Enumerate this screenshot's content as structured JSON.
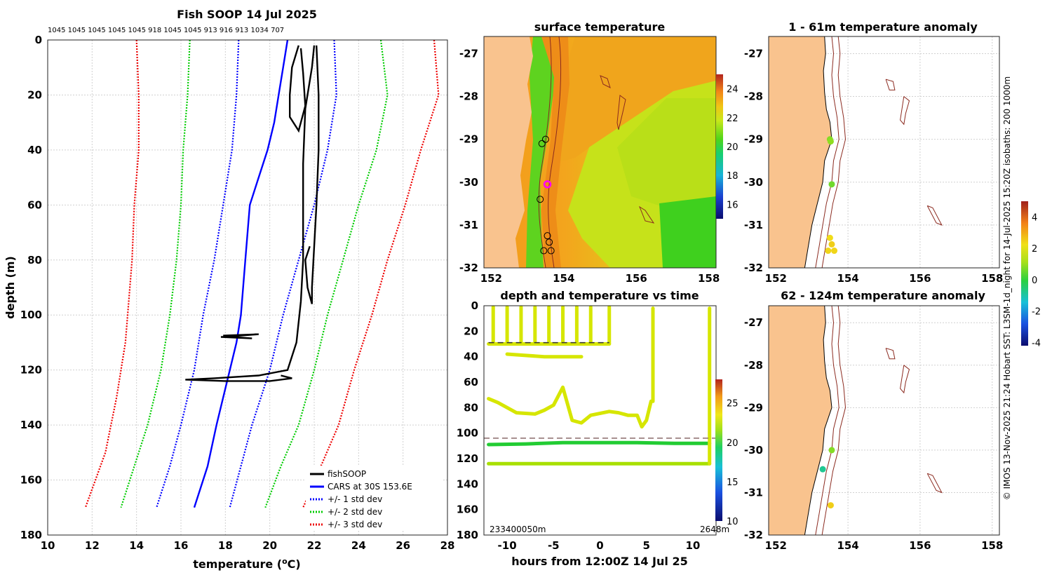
{
  "chart_data": [
    {
      "type": "line",
      "title": "Fish SOOP 14 Jul 2025",
      "header_counts": "1045 1045 1045 1045 1045 918 1045 1045 913 916 913 1034 707",
      "xlabel": "temperature (",
      "xlabel_sup": "o",
      "xlabel_end": "C)",
      "ylabel": "depth (m)",
      "xlim": [
        10,
        28
      ],
      "ylim": [
        180,
        0
      ],
      "xticks": [
        10,
        12,
        14,
        16,
        18,
        20,
        22,
        24,
        26,
        28
      ],
      "yticks": [
        0,
        20,
        40,
        60,
        80,
        100,
        120,
        140,
        160,
        180
      ],
      "grid": true,
      "legend_position": "bottom-right",
      "legend": [
        {
          "label": "fishSOOP",
          "color": "#000000",
          "style": "solid"
        },
        {
          "label": "CARS at 30S 153.6E",
          "color": "#0000ff",
          "style": "solid"
        },
        {
          "label": "+/- 1 std dev",
          "color": "#0000ff",
          "style": "dotted"
        },
        {
          "label": "+/- 2 std dev",
          "color": "#00cc00",
          "style": "dotted"
        },
        {
          "label": "+/- 3 std dev",
          "color": "#ee0000",
          "style": "dotted"
        }
      ],
      "series": [
        {
          "name": "CARS mean",
          "color": "#0000ff",
          "style": "solid",
          "points": [
            [
              20.8,
              0
            ],
            [
              20.6,
              10
            ],
            [
              20.4,
              20
            ],
            [
              20.2,
              30
            ],
            [
              19.9,
              40
            ],
            [
              19.5,
              50
            ],
            [
              19.1,
              60
            ],
            [
              18.9,
              80
            ],
            [
              18.7,
              100
            ],
            [
              18.5,
              110
            ],
            [
              18.2,
              120
            ],
            [
              17.9,
              130
            ],
            [
              17.6,
              140
            ],
            [
              17.2,
              155
            ],
            [
              16.6,
              170
            ]
          ]
        },
        {
          "name": "-1 std",
          "color": "#0000ff",
          "style": "dotted",
          "points": [
            [
              18.6,
              0
            ],
            [
              18.5,
              20
            ],
            [
              18.3,
              40
            ],
            [
              17.9,
              60
            ],
            [
              17.5,
              80
            ],
            [
              17.0,
              100
            ],
            [
              16.6,
              120
            ],
            [
              16.0,
              140
            ],
            [
              15.5,
              155
            ],
            [
              14.9,
              170
            ]
          ]
        },
        {
          "name": "+1 std",
          "color": "#0000ff",
          "style": "dotted",
          "points": [
            [
              22.9,
              0
            ],
            [
              23.0,
              20
            ],
            [
              22.6,
              40
            ],
            [
              22.0,
              60
            ],
            [
              21.3,
              80
            ],
            [
              20.6,
              100
            ],
            [
              20.0,
              120
            ],
            [
              19.6,
              130
            ],
            [
              19.2,
              140
            ],
            [
              18.7,
              155
            ],
            [
              18.2,
              170
            ]
          ]
        },
        {
          "name": "-2 std",
          "color": "#00cc00",
          "style": "dotted",
          "points": [
            [
              16.4,
              0
            ],
            [
              16.3,
              20
            ],
            [
              16.1,
              40
            ],
            [
              16.0,
              60
            ],
            [
              15.8,
              80
            ],
            [
              15.5,
              100
            ],
            [
              15.1,
              120
            ],
            [
              14.5,
              140
            ],
            [
              13.9,
              155
            ],
            [
              13.3,
              170
            ]
          ]
        },
        {
          "name": "+2 std",
          "color": "#00cc00",
          "style": "dotted",
          "points": [
            [
              25.0,
              0
            ],
            [
              25.3,
              20
            ],
            [
              24.8,
              40
            ],
            [
              24.0,
              60
            ],
            [
              23.3,
              80
            ],
            [
              22.6,
              100
            ],
            [
              22.0,
              120
            ],
            [
              21.3,
              140
            ],
            [
              20.5,
              155
            ],
            [
              19.8,
              170
            ]
          ]
        },
        {
          "name": "-3 std",
          "color": "#ee0000",
          "style": "dotted",
          "points": [
            [
              14.0,
              0
            ],
            [
              14.1,
              20
            ],
            [
              14.1,
              40
            ],
            [
              13.9,
              60
            ],
            [
              13.8,
              80
            ],
            [
              13.6,
              100
            ],
            [
              13.5,
              110
            ],
            [
              13.1,
              130
            ],
            [
              12.6,
              150
            ],
            [
              11.7,
              170
            ]
          ]
        },
        {
          "name": "+3 std",
          "color": "#ee0000",
          "style": "dotted",
          "points": [
            [
              27.4,
              0
            ],
            [
              27.6,
              20
            ],
            [
              26.8,
              40
            ],
            [
              26.1,
              60
            ],
            [
              25.3,
              80
            ],
            [
              24.6,
              100
            ],
            [
              23.8,
              120
            ],
            [
              23.1,
              140
            ],
            [
              22.3,
              155
            ],
            [
              21.5,
              170
            ]
          ]
        },
        {
          "name": "fishSOOP cast A",
          "color": "#000000",
          "style": "solid",
          "points": [
            [
              21.3,
              2
            ],
            [
              21.0,
              10
            ],
            [
              20.9,
              20
            ],
            [
              20.9,
              28
            ],
            [
              21.3,
              33
            ],
            [
              21.6,
              24
            ],
            [
              21.5,
              12
            ],
            [
              21.4,
              3
            ]
          ]
        },
        {
          "name": "fishSOOP cast B",
          "color": "#000000",
          "style": "solid",
          "points": [
            [
              22.0,
              2
            ],
            [
              21.9,
              10
            ],
            [
              21.6,
              25
            ],
            [
              21.5,
              45
            ],
            [
              21.5,
              65
            ],
            [
              21.5,
              80
            ],
            [
              21.4,
              95
            ],
            [
              21.2,
              110
            ],
            [
              20.8,
              120
            ],
            [
              19.5,
              122
            ],
            [
              17.5,
              123
            ],
            [
              16.2,
              123.5
            ],
            [
              18.0,
              124
            ],
            [
              20.0,
              124
            ],
            [
              21.0,
              123
            ],
            [
              20.5,
              122
            ]
          ]
        },
        {
          "name": "fishSOOP cast C",
          "color": "#000000",
          "style": "solid",
          "points": [
            [
              22.1,
              2
            ],
            [
              22.2,
              20
            ],
            [
              22.2,
              40
            ],
            [
              22.1,
              60
            ],
            [
              22.0,
              75
            ],
            [
              21.9,
              90
            ],
            [
              21.9,
              96
            ],
            [
              21.7,
              90
            ],
            [
              21.6,
              80
            ],
            [
              21.8,
              75
            ]
          ]
        },
        {
          "name": "fishSOOP cast D",
          "color": "#000000",
          "style": "solid",
          "points": [
            [
              17.9,
              107.5
            ],
            [
              19.5,
              107
            ],
            [
              17.8,
              108
            ],
            [
              19.2,
              108.5
            ],
            [
              18.0,
              107.8
            ]
          ]
        }
      ]
    },
    {
      "type": "heatmap",
      "title": "surface temperature",
      "xticks": [
        152,
        154,
        156,
        158
      ],
      "yticks": [
        -27,
        -28,
        -29,
        -30,
        -31,
        -32
      ],
      "xlim": [
        151.8,
        158.2
      ],
      "ylim": [
        -32,
        -26.6
      ],
      "colorbar_ticks": [
        16,
        18,
        20,
        22,
        24
      ],
      "colorbar_range": [
        15,
        25
      ],
      "marker_points": [
        [
          153.4,
          -29.1
        ],
        [
          153.5,
          -29.0
        ],
        [
          153.35,
          -30.4
        ],
        [
          153.55,
          -31.25
        ],
        [
          153.6,
          -31.4
        ],
        [
          153.45,
          -31.6
        ],
        [
          153.65,
          -31.6
        ]
      ],
      "magenta_point": [
        153.55,
        -30.05
      ]
    },
    {
      "type": "scatter",
      "title": "depth and temperature vs time",
      "xlabel": "hours from 12:00Z 14 Jul 25",
      "xlim": [
        -12.5,
        12.5
      ],
      "ylim": [
        180,
        0
      ],
      "xticks": [
        -10,
        -5,
        0,
        5,
        10
      ],
      "yticks": [
        0,
        20,
        40,
        60,
        80,
        100,
        120,
        140,
        160,
        180
      ],
      "colorbar_ticks": [
        10,
        15,
        20,
        25
      ],
      "colorbar_range": [
        10,
        28
      ],
      "bottom_left_label": "233400050m",
      "bottom_right_label": "2648m",
      "dashed_depths": [
        29,
        104
      ],
      "series": [
        {
          "name": "30m bottom line",
          "color": "#d6e600",
          "points": [
            [
              -12,
              30
            ],
            [
              -10,
              30
            ],
            [
              -8,
              30
            ],
            [
              -5,
              30
            ],
            [
              -2,
              30
            ],
            [
              1,
              30
            ]
          ]
        },
        {
          "name": "40m bottom line",
          "color": "#d6e600",
          "points": [
            [
              -10,
              38
            ],
            [
              -8,
              39
            ],
            [
              -6,
              40
            ],
            [
              -4,
              40
            ],
            [
              -2,
              40
            ]
          ]
        },
        {
          "name": "80m band",
          "color": "#d6e600",
          "points": [
            [
              -12,
              73
            ],
            [
              -11,
              76
            ],
            [
              -9,
              84
            ],
            [
              -7,
              85
            ],
            [
              -6,
              82
            ],
            [
              -5,
              78
            ],
            [
              -4,
              64
            ],
            [
              -3,
              90
            ],
            [
              -2,
              92
            ],
            [
              -1,
              86
            ],
            [
              1,
              83
            ],
            [
              2,
              84
            ],
            [
              3,
              86
            ],
            [
              4,
              86
            ],
            [
              4.5,
              95
            ],
            [
              5,
              90
            ],
            [
              5.5,
              75
            ]
          ]
        },
        {
          "name": "108m band",
          "color": "#22cc33",
          "points": [
            [
              -12,
              109
            ],
            [
              -8,
              108.5
            ],
            [
              -4,
              107.5
            ],
            [
              0,
              107.5
            ],
            [
              4,
              107.5
            ],
            [
              8,
              108
            ],
            [
              11.8,
              108
            ]
          ]
        },
        {
          "name": "124m band",
          "color": "#a8e000",
          "points": [
            [
              -12,
              124
            ],
            [
              -6,
              124
            ],
            [
              0,
              124
            ],
            [
              6,
              124
            ],
            [
              11.8,
              124
            ]
          ]
        },
        {
          "name": "vertical right",
          "color": "#d6e600",
          "points": [
            [
              11.8,
              2
            ],
            [
              11.8,
              124
            ]
          ]
        },
        {
          "name": "vertical 5.7",
          "color": "#d6e600",
          "points": [
            [
              5.7,
              2
            ],
            [
              5.7,
              75
            ]
          ]
        }
      ]
    },
    {
      "type": "scatter",
      "title": "1 - 61m temperature anomaly",
      "xticks": [
        152,
        154,
        156,
        158
      ],
      "yticks": [
        -27,
        -28,
        -29,
        -30,
        -31,
        -32
      ],
      "xlim": [
        151.8,
        158.2
      ],
      "ylim": [
        -32,
        -26.6
      ],
      "points": [
        {
          "lon": 153.5,
          "lat": -29.0,
          "value": 0.8
        },
        {
          "lon": 153.52,
          "lat": -29.05,
          "value": 0.9
        },
        {
          "lon": 153.55,
          "lat": -30.05,
          "value": 0.6
        },
        {
          "lon": 153.5,
          "lat": -31.3,
          "value": 2.3
        },
        {
          "lon": 153.55,
          "lat": -31.45,
          "value": 2.5
        },
        {
          "lon": 153.45,
          "lat": -31.6,
          "value": 2.4
        },
        {
          "lon": 153.62,
          "lat": -31.6,
          "value": 2.4
        }
      ]
    },
    {
      "type": "scatter",
      "title": "62 - 124m temperature anomaly",
      "xticks": [
        152,
        154,
        156,
        158
      ],
      "yticks": [
        -27,
        -28,
        -29,
        -30,
        -31,
        -32
      ],
      "xlim": [
        151.8,
        158.2
      ],
      "ylim": [
        -32,
        -26.6
      ],
      "colorbar_ticks": [
        -4,
        -2,
        0,
        2,
        4
      ],
      "colorbar_range": [
        -4.2,
        5
      ],
      "points": [
        {
          "lon": 153.55,
          "lat": -30.0,
          "value": 0.8
        },
        {
          "lon": 153.3,
          "lat": -30.45,
          "value": -0.8
        },
        {
          "lon": 153.52,
          "lat": -31.3,
          "value": 2.5
        }
      ]
    }
  ],
  "side_note": "© IMOS 13-Nov-2025 21:24 Hobart SST: L3SM-1d_night for 14-Jul-2025 15:20Z isobaths: 200  1000m",
  "colors": {
    "land": "#f9c38e",
    "isobath": "#8b2a1f",
    "grid": "#c8c8c8"
  }
}
